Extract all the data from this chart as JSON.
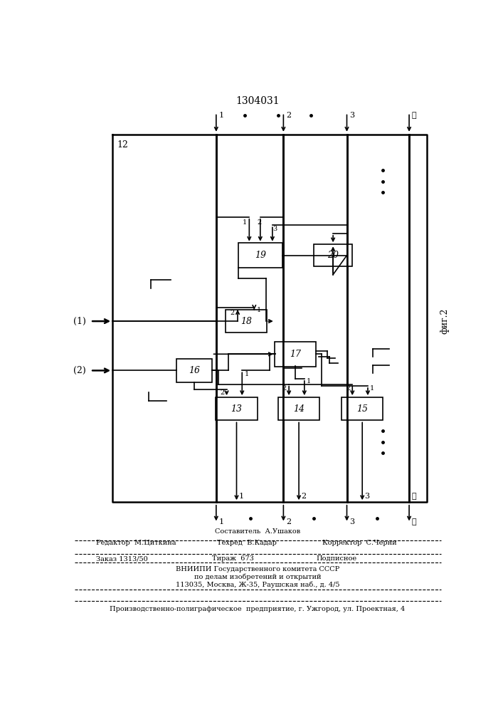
{
  "title": "1304031",
  "fig_label": "фиг.2",
  "background_color": "#ffffff",
  "line_color": "#000000",
  "footer": {
    "line1": "Составитель  А.Ушаков",
    "line2_left": "Редактор  М.Циткина",
    "line2_mid": "Техред  В.Кадар",
    "line2_right": "Корректор  С.Черни",
    "line3_left": "Заказ 1313/50",
    "line3_mid": "Тираж  673",
    "line3_right": "Подписное",
    "line4": "ВНИИПИ Государственного комитета СССР",
    "line5": "по делам изобретений и открытий",
    "line6": "113035, Москва, Ж-35, Раушская наб., д. 4/5",
    "line7": "Производственно-полиграфическое  предприятие, г. Ужгород, ул. Проектная, 4"
  }
}
